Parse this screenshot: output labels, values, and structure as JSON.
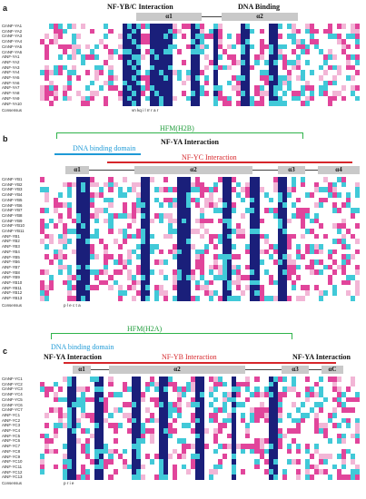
{
  "panels": {
    "a": {
      "letter": "a",
      "interaction_label": "NF-YB/C Interaction",
      "binding_label": "DNA Binding",
      "helices": [
        "α1",
        "α2"
      ],
      "sequence_names": [
        "CmNF-YA1",
        "CmNF-YA2",
        "CmNF-YA3",
        "CmNF-YA4",
        "CmNF-YA5",
        "CmNF-YA6",
        "AtNF-YA1",
        "AtNF-YA2",
        "AtNF-YA3",
        "AtNF-YA4",
        "AtNF-YA5",
        "AtNF-YA6",
        "AtNF-YA7",
        "AtNF-YA8",
        "AtNF-YA9",
        "AtNF-YA10"
      ],
      "consensus_label": "Consensus",
      "consensus_text": "vn kq    i   l   rr r a                          r"
    },
    "b": {
      "letter": "b",
      "hfm_label": "HFM(H2B)",
      "dna_label": "DNA binding domain",
      "ya_label": "NF-YA Interaction",
      "yc_label": "NF-YC Interaction",
      "helices": [
        "α1",
        "α2",
        "α3",
        "α4"
      ],
      "sequence_names": [
        "CmNF-YB1",
        "CmNF-YB2",
        "CmNF-YB3",
        "CmNF-YB4",
        "CmNF-YB5",
        "CmNF-YB6",
        "CmNF-YB7",
        "CmNF-YB8",
        "CmNF-YB9",
        "CmNF-YB10",
        "CmNF-YB11",
        "AtNF-YB1",
        "AtNF-YB2",
        "AtNF-YB3",
        "AtNF-YB4",
        "AtNF-YB5",
        "AtNF-YB6",
        "AtNF-YB7",
        "AtNF-YB8",
        "AtNF-YB9",
        "AtNF-YB10",
        "AtNF-YB11",
        "AtNF-YB12",
        "AtNF-YB13"
      ],
      "consensus_label": "Consensus",
      "consensus_text": "p              l       e            c     t           a"
    },
    "c": {
      "letter": "c",
      "hfm_label": "HFM(H2A)",
      "dna_label": "DNA binding domain",
      "ya_label_left": "NF-YA Interaction",
      "yb_label": "NF-YB Interaction",
      "ya_label_right": "NF-YA Interaction",
      "helices": [
        "α1",
        "α2",
        "α3",
        "αC"
      ],
      "sequence_names": [
        "CmNF-YC1",
        "CmNF-YC2",
        "CmNF-YC3",
        "CmNF-YC4",
        "CmNF-YC5",
        "CmNF-YC6",
        "CmNF-YC7",
        "AtNF-YC1",
        "AtNF-YC2",
        "AtNF-YC3",
        "AtNF-YC4",
        "AtNF-YC5",
        "AtNF-YC6",
        "AtNF-YC7",
        "AtNF-YC8",
        "AtNF-YC9",
        "AtNF-YC10",
        "AtNF-YC11",
        "AtNF-YC12",
        "AtNF-YC13"
      ],
      "consensus_label": "Consensus",
      "consensus_text": "p   r    i                  e"
    }
  },
  "colors": {
    "identical": "#1a1f7a",
    "high": "#e1459b",
    "medium": "#41c9d8",
    "low": "#f2b6d6",
    "green": "#2fb34a",
    "blue": "#1e9ad6",
    "red": "#d6262b",
    "region_box": "#c9c9c9"
  }
}
